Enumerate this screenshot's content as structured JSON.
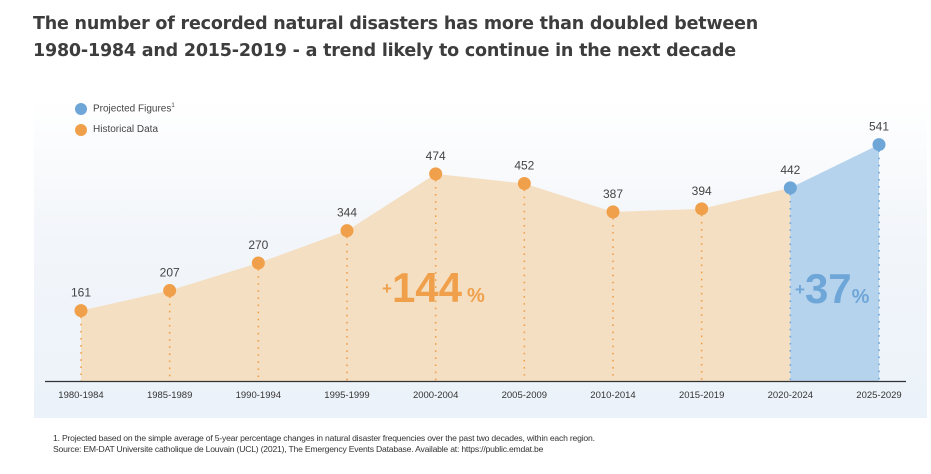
{
  "title_line1": "The number of recorded natural disasters has more than doubled between",
  "title_line2": "1980-1984 and 2015-2019 - a trend likely to continue in the next decade",
  "legend": [
    {
      "label": "Projected Figures",
      "sup": "1",
      "color": "#6fa6d8"
    },
    {
      "label": "Historical Data",
      "sup": "",
      "color": "#f0a04b"
    }
  ],
  "colors": {
    "historical": "#f0a04b",
    "historical_fill": "#f5dfc3",
    "projected": "#6fa6d8",
    "projected_fill": "#b6d3ee",
    "historical_pct_text": "#f0a04b",
    "projected_pct_text": "#6fa6d8",
    "axis": "#333333"
  },
  "annotations": {
    "historical_change": {
      "prefix": "+",
      "value": "144",
      "suffix": "%"
    },
    "projected_change": {
      "prefix": "+",
      "value": "37",
      "suffix": "%"
    }
  },
  "footnote_line1": "1. Projected based on the simple average of 5-year percentage changes in natural disaster frequencies over the past two decades, within each region.",
  "footnote_line2": "Source: EM-DAT Universite  catholique de Louvain (UCL) (2021), The Emergency Events Database. Available at: https://public.emdat.be",
  "chart_data": {
    "type": "area",
    "title": "The number of recorded natural disasters has more than doubled between 1980-1984 and 2015-2019 - a trend likely to continue in the next decade",
    "xlabel": "",
    "ylabel": "",
    "categories": [
      "1980-1984",
      "1985-1989",
      "1990-1994",
      "1995-1999",
      "2000-2004",
      "2005-2009",
      "2010-2014",
      "2015-2019",
      "2020-2024",
      "2025-2029"
    ],
    "ylim": [
      0,
      541
    ],
    "grid": false,
    "legend_position": "top-left",
    "series": [
      {
        "name": "Historical Data",
        "values": [
          161,
          207,
          270,
          344,
          474,
          452,
          387,
          394,
          442,
          null
        ]
      },
      {
        "name": "Projected Figures",
        "values": [
          null,
          null,
          null,
          null,
          null,
          null,
          null,
          null,
          442,
          541
        ]
      }
    ],
    "data_labels": [
      "161",
      "207",
      "270",
      "344",
      "474",
      "452",
      "387",
      "394",
      "442",
      "541"
    ]
  }
}
